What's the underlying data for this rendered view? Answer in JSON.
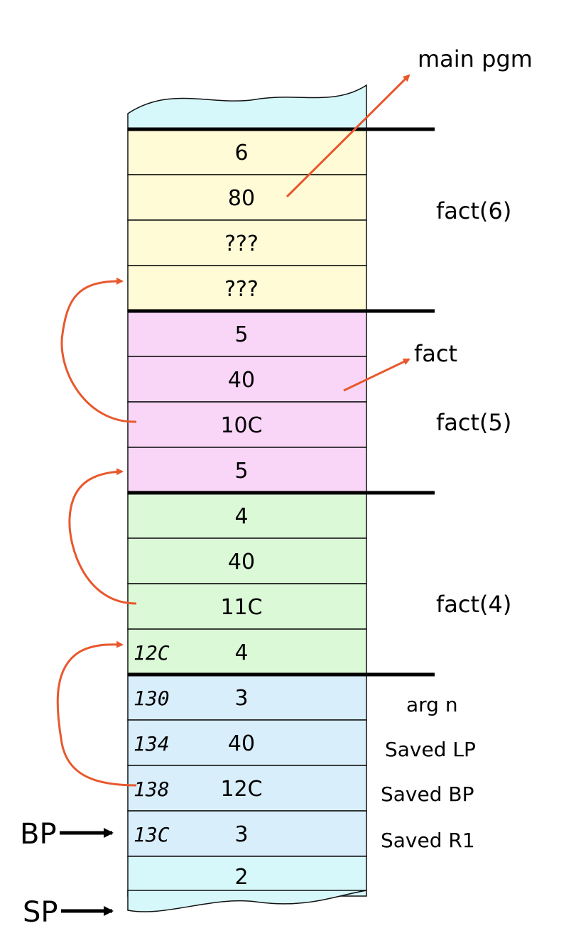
{
  "colors": {
    "fact6": "#fffbd6",
    "fact5": "#f9d6f7",
    "fact4": "#dbf8d7",
    "current": "#d9eefb",
    "edge": "#d6f8fb",
    "arrow": "#e8582d"
  },
  "cells": [
    {
      "value": "6",
      "addr": "",
      "frame": "fact6"
    },
    {
      "value": "80",
      "addr": "",
      "frame": "fact6"
    },
    {
      "value": "???",
      "addr": "",
      "frame": "fact6"
    },
    {
      "value": "???",
      "addr": "",
      "frame": "fact6"
    },
    {
      "value": "5",
      "addr": "",
      "frame": "fact5"
    },
    {
      "value": "40",
      "addr": "",
      "frame": "fact5"
    },
    {
      "value": "10C",
      "addr": "",
      "frame": "fact5"
    },
    {
      "value": "5",
      "addr": "",
      "frame": "fact5"
    },
    {
      "value": "4",
      "addr": "",
      "frame": "fact4"
    },
    {
      "value": "40",
      "addr": "",
      "frame": "fact4"
    },
    {
      "value": "11C",
      "addr": "",
      "frame": "fact4"
    },
    {
      "value": "4",
      "addr": "12C",
      "frame": "fact4"
    },
    {
      "value": "3",
      "addr": "130",
      "frame": "current"
    },
    {
      "value": "40",
      "addr": "134",
      "frame": "current"
    },
    {
      "value": "12C",
      "addr": "138",
      "frame": "current"
    },
    {
      "value": "3",
      "addr": "13C",
      "frame": "current"
    },
    {
      "value": "2",
      "addr": "",
      "frame": "edge"
    }
  ],
  "frame_labels": {
    "fact6": "fact(6)",
    "fact5": "fact(5)",
    "fact4": "fact(4)"
  },
  "target_labels": {
    "main": "main pgm",
    "fact": "fact"
  },
  "field_labels": [
    "arg n",
    "Saved LP",
    "Saved BP",
    "Saved R1"
  ],
  "pointers": {
    "bp": "BP",
    "sp": "SP"
  }
}
